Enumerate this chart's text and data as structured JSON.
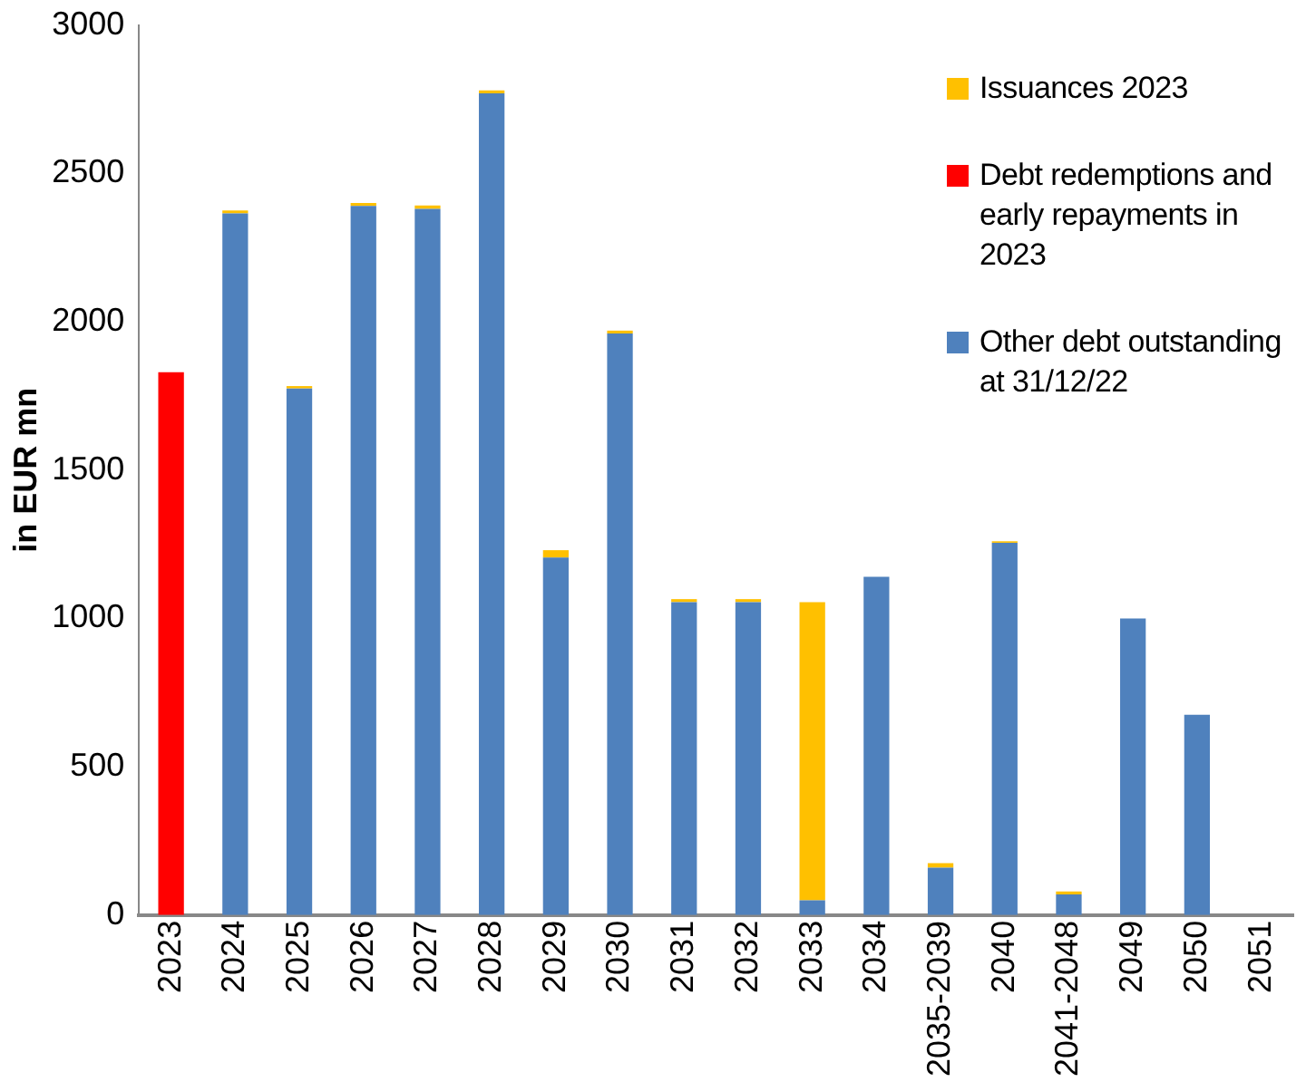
{
  "chart_data": {
    "type": "bar",
    "stacked": true,
    "ylabel": "in EUR mn",
    "categories": [
      "2023",
      "2024",
      "2025",
      "2026",
      "2027",
      "2028",
      "2029",
      "2030",
      "2031",
      "2032",
      "2033",
      "2034",
      "2035-2039",
      "2040",
      "2041-2048",
      "2049",
      "2050",
      "2051"
    ],
    "series": [
      {
        "name": "Other debt outstanding at 31/12/22",
        "color": "#4f81bd",
        "values": [
          0,
          2365,
          1775,
          2390,
          2380,
          2770,
          1205,
          1960,
          1055,
          1055,
          50,
          1140,
          160,
          1255,
          70,
          1000,
          675,
          0
        ]
      },
      {
        "name": "Debt redemptions and early repayments in 2023",
        "color": "#ff0000",
        "values": [
          1830,
          0,
          0,
          0,
          0,
          0,
          0,
          0,
          0,
          0,
          0,
          0,
          0,
          0,
          0,
          0,
          0,
          0
        ]
      },
      {
        "name": "Issuances 2023",
        "color": "#ffc000",
        "values": [
          0,
          10,
          8,
          10,
          12,
          10,
          25,
          10,
          10,
          10,
          1005,
          0,
          15,
          5,
          10,
          0,
          0,
          0
        ]
      }
    ],
    "legend": "top right",
    "ylim": [
      0,
      3000
    ],
    "yticks": [
      0,
      500,
      1000,
      1500,
      2000,
      2500,
      3000
    ],
    "grid": false
  }
}
